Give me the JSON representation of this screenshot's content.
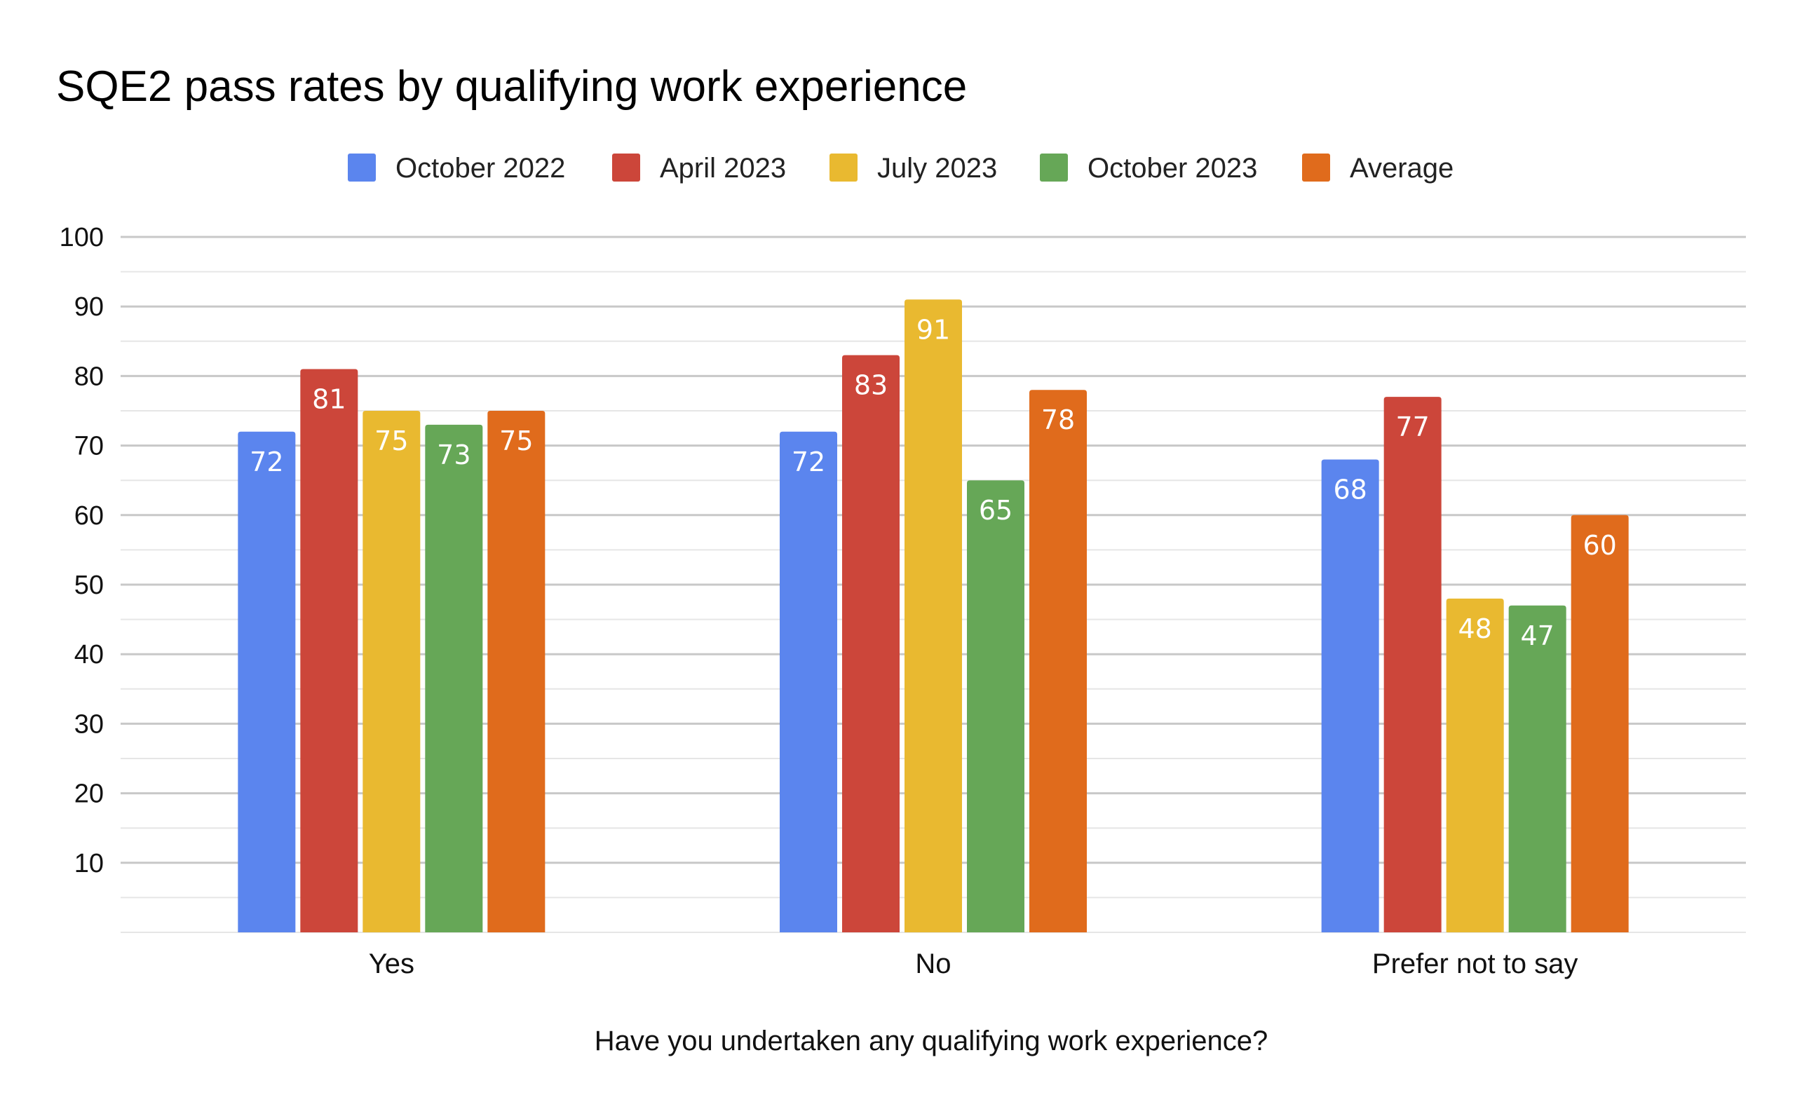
{
  "chart_data": {
    "type": "bar",
    "title": "SQE2 pass rates by qualifying work experience",
    "xlabel": "Have you undertaken any qualifying work experience?",
    "ylabel": "",
    "categories": [
      "Yes",
      "No",
      "Prefer not to say"
    ],
    "series": [
      {
        "name": "October 2022",
        "color": "#5B85EE",
        "values": [
          72,
          72,
          68
        ]
      },
      {
        "name": "April 2023",
        "color": "#CC463A",
        "values": [
          81,
          83,
          77
        ]
      },
      {
        "name": "July 2023",
        "color": "#E9B930",
        "values": [
          75,
          91,
          48
        ]
      },
      {
        "name": "October 2023",
        "color": "#66A757",
        "values": [
          73,
          65,
          47
        ]
      },
      {
        "name": "Average",
        "color": "#E06B1C",
        "values": [
          75,
          78,
          60
        ]
      }
    ],
    "ylim": [
      0,
      100
    ],
    "yticks": [
      10,
      20,
      30,
      40,
      50,
      60,
      70,
      80,
      90,
      100
    ],
    "grid": true,
    "minor_grid": true,
    "legend_position": "top-center",
    "data_labels": true,
    "gridline_color": "#C8C8C8",
    "minor_gridline_color": "#E6E6E6"
  }
}
